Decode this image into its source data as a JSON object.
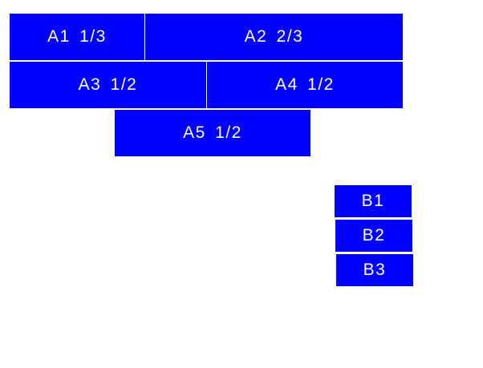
{
  "colors": {
    "box": "#0000ff",
    "text": "#ffffff"
  },
  "a_boxes": [
    {
      "label": "A1 1/3"
    },
    {
      "label": "A2 2/3"
    },
    {
      "label": "A3 1/2"
    },
    {
      "label": "A4 1/2"
    },
    {
      "label": "A5 1/2"
    }
  ],
  "b_boxes": [
    {
      "label": "B1"
    },
    {
      "label": "B2"
    },
    {
      "label": "B3"
    }
  ]
}
